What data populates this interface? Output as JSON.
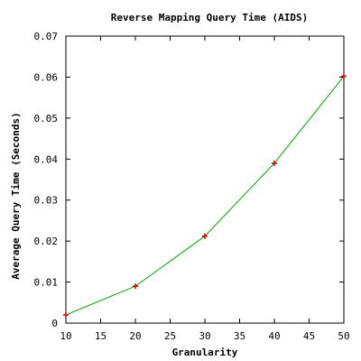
{
  "chart_data": {
    "type": "line",
    "title": "Reverse Mapping Query Time (AIDS)",
    "xlabel": "Granularity",
    "ylabel": "Average Query Time (Seconds)",
    "xlim": [
      10,
      50
    ],
    "ylim": [
      0,
      0.07
    ],
    "x_ticks": [
      10,
      15,
      20,
      25,
      30,
      35,
      40,
      45,
      50
    ],
    "x_tick_labels": [
      "10",
      "15",
      "20",
      "25",
      "30",
      "35",
      "40",
      "45",
      "50"
    ],
    "y_ticks": [
      0,
      0.01,
      0.02,
      0.03,
      0.04,
      0.05,
      0.06,
      0.07
    ],
    "y_tick_labels": [
      "0",
      "0.01",
      "0.02",
      "0.03",
      "0.04",
      "0.05",
      "0.06",
      "0.07"
    ],
    "grid": false,
    "series": [
      {
        "x": [
          10,
          20,
          30,
          40,
          50
        ],
        "y": [
          0.002,
          0.009,
          0.0212,
          0.039,
          0.0602
        ],
        "line_color": "#00a000",
        "marker_color": "#cc0000"
      }
    ]
  }
}
